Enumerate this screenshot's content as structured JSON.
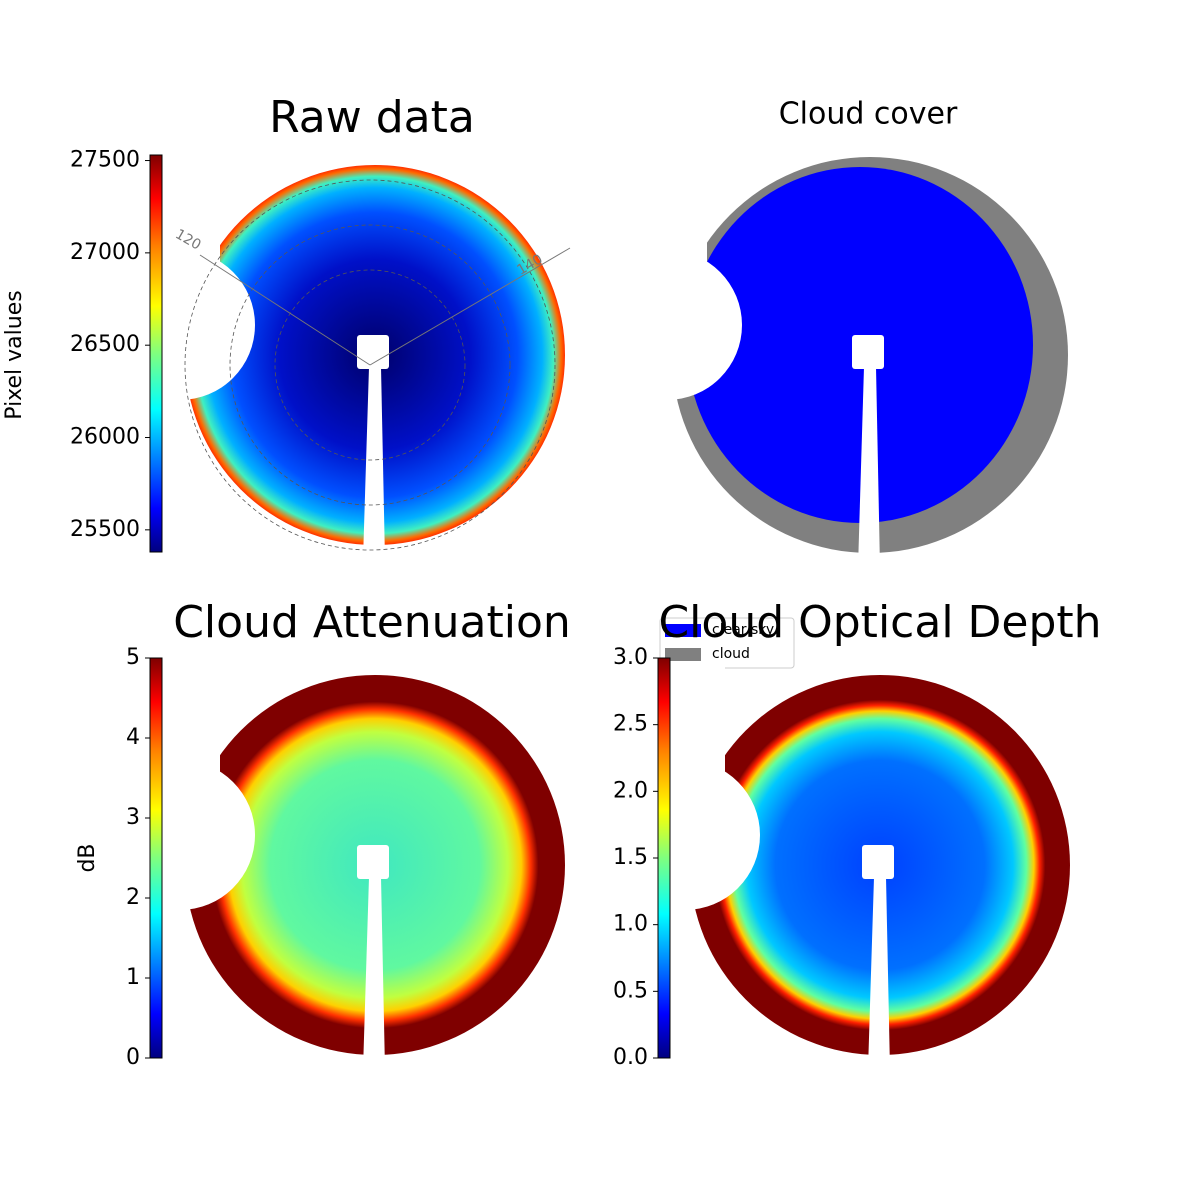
{
  "chart_data": [
    {
      "type": "image",
      "title": "Raw data",
      "colormap": "jet",
      "colorbar_label": "Pixel values",
      "clim": [
        25380,
        27530
      ],
      "cticks": [
        25500,
        26000,
        26500,
        27000,
        27500
      ],
      "annotations": [
        "120",
        "140"
      ]
    },
    {
      "type": "image",
      "title": "Cloud cover",
      "legend": "lower left",
      "series": [
        {
          "name": "clear sky",
          "color": "#0000ff"
        },
        {
          "name": "cloud",
          "color": "#808080"
        }
      ]
    },
    {
      "type": "image",
      "title": "Cloud Attenuation",
      "colormap": "jet",
      "colorbar_label": "dB",
      "clim": [
        0,
        5
      ],
      "cticks": [
        0,
        1,
        2,
        3,
        4,
        5
      ]
    },
    {
      "type": "image",
      "title": "Cloud Optical Depth",
      "colormap": "jet",
      "clim": [
        0,
        3
      ],
      "cticks": [
        {
          "value": 0,
          "label": "0.0"
        },
        0.5,
        {
          "value": 1,
          "label": "1.0"
        },
        1.5,
        {
          "value": 2,
          "label": "2.0"
        },
        2.5,
        {
          "value": 3,
          "label": "3.0"
        }
      ]
    }
  ]
}
